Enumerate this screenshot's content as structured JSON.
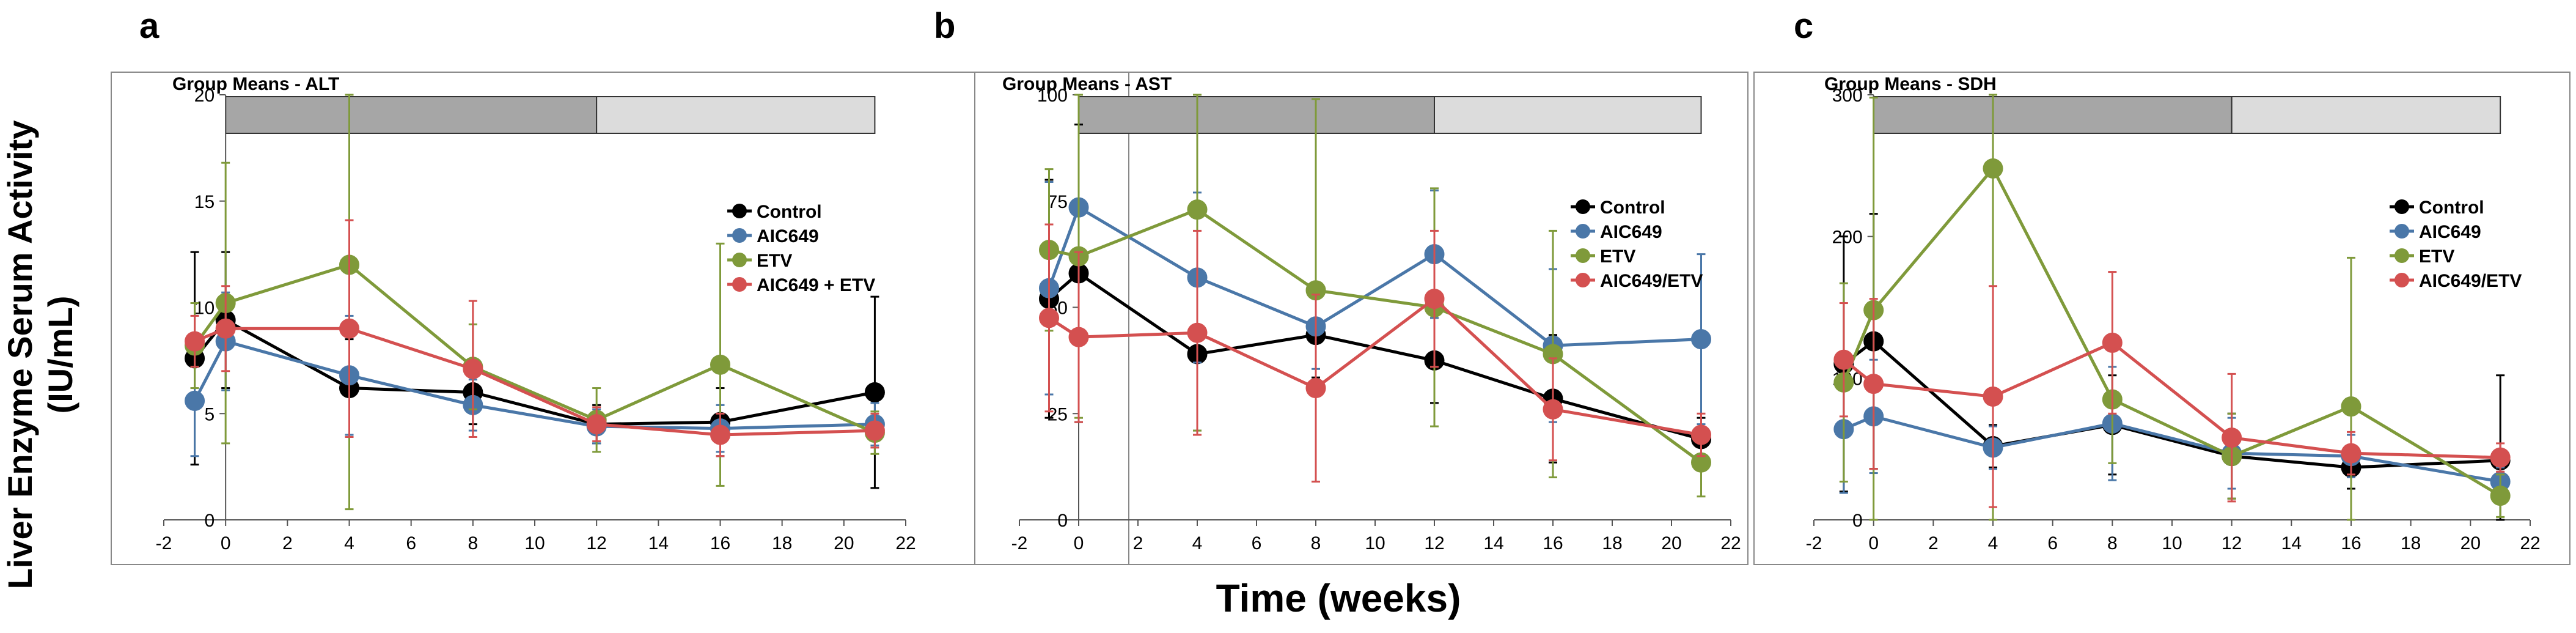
{
  "figure": {
    "y_axis_title_line1": "Liver Enzyme Serum Activity",
    "y_axis_title_line2": "(IU/mL)",
    "x_axis_title": "Time (weeks)"
  },
  "colors": {
    "Control": "#000000",
    "AIC649": "#4a77a8",
    "ETV": "#7f9a3a",
    "Combo": "#d45050",
    "bar_dark": "#a6a6a6",
    "bar_light": "#dcdcdc"
  },
  "chart_data": [
    {
      "type": "line",
      "panel_letter": "a",
      "title": "Group Means - ALT",
      "xlabel": "Time (weeks)",
      "ylabel": "Liver Enzyme Serum Activity (IU/mL)",
      "xlim": [
        -2,
        22
      ],
      "ylim": [
        0,
        20
      ],
      "xticks": [
        -2,
        0,
        2,
        4,
        6,
        8,
        10,
        12,
        14,
        16,
        18,
        20,
        22
      ],
      "yticks": [
        0,
        5,
        10,
        15,
        20
      ],
      "treatment_bars": [
        {
          "phase": "dark",
          "x_start": 0,
          "x_end": 12
        },
        {
          "phase": "light",
          "x_start": 12,
          "x_end": 21
        }
      ],
      "legend_position": "right",
      "series": [
        {
          "name": "Control",
          "color_key": "Control",
          "x": [
            -1,
            0,
            4,
            8,
            12,
            16,
            21
          ],
          "y": [
            7.6,
            9.4,
            6.2,
            6.0,
            4.5,
            4.6,
            6.0
          ],
          "err": [
            5.0,
            3.2,
            2.3,
            1.5,
            0.9,
            1.6,
            4.5
          ]
        },
        {
          "name": "AIC649",
          "color_key": "AIC649",
          "x": [
            -1,
            0,
            4,
            8,
            12,
            16,
            21
          ],
          "y": [
            5.6,
            8.4,
            6.8,
            5.4,
            4.4,
            4.3,
            4.5
          ],
          "err": [
            2.6,
            2.3,
            2.8,
            1.2,
            0.8,
            1.1,
            1.0
          ]
        },
        {
          "name": "ETV",
          "color_key": "ETV",
          "x": [
            -1,
            0,
            4,
            8,
            12,
            16,
            21
          ],
          "y": [
            8.2,
            10.2,
            12.0,
            7.2,
            4.7,
            7.3,
            4.1
          ],
          "err": [
            2.0,
            6.6,
            11.5,
            2.0,
            1.5,
            5.7,
            1.0
          ]
        },
        {
          "name": "AIC649 + ETV",
          "color_key": "Combo",
          "x": [
            -1,
            0,
            4,
            8,
            12,
            16,
            21
          ],
          "y": [
            8.4,
            9.0,
            9.0,
            7.1,
            4.5,
            4.0,
            4.2
          ],
          "err": [
            1.2,
            2.0,
            5.1,
            3.2,
            0.8,
            1.0,
            0.8
          ]
        }
      ]
    },
    {
      "type": "line",
      "panel_letter": "b",
      "title": "Group Means - AST",
      "xlabel": "Time (weeks)",
      "ylabel": "Liver Enzyme Serum Activity (IU/mL)",
      "xlim": [
        -2,
        22
      ],
      "ylim": [
        0,
        100
      ],
      "xticks": [
        -2,
        0,
        2,
        4,
        6,
        8,
        10,
        12,
        14,
        16,
        18,
        20,
        22
      ],
      "yticks": [
        0,
        25,
        50,
        75,
        100
      ],
      "treatment_bars": [
        {
          "phase": "dark",
          "x_start": 0,
          "x_end": 12
        },
        {
          "phase": "light",
          "x_start": 12,
          "x_end": 21
        }
      ],
      "legend_position": "right",
      "series": [
        {
          "name": "Control",
          "color_key": "Control",
          "x": [
            -1,
            0,
            4,
            8,
            12,
            16,
            21
          ],
          "y": [
            52,
            58,
            39,
            43.5,
            37.5,
            28.5,
            19
          ],
          "err": [
            28,
            35,
            18,
            10,
            10,
            15,
            5
          ]
        },
        {
          "name": "AIC649",
          "color_key": "AIC649",
          "x": [
            -1,
            0,
            4,
            8,
            12,
            16,
            21
          ],
          "y": [
            54.5,
            73.5,
            57,
            45.5,
            62.5,
            41,
            42.5
          ],
          "err": [
            25,
            30,
            20,
            10,
            15,
            18,
            20
          ]
        },
        {
          "name": "ETV",
          "color_key": "ETV",
          "x": [
            -1,
            0,
            4,
            8,
            12,
            16,
            21
          ],
          "y": [
            63.5,
            62,
            73,
            54,
            50,
            39,
            13.5
          ],
          "err": [
            19,
            38,
            52,
            45,
            28,
            29,
            8
          ]
        },
        {
          "name": "AIC649/ETV",
          "color_key": "Combo",
          "x": [
            -1,
            0,
            4,
            8,
            12,
            16,
            21
          ],
          "y": [
            47.5,
            43,
            44,
            31,
            52,
            26,
            20
          ],
          "err": [
            22,
            20,
            24,
            22,
            16,
            12,
            5
          ]
        }
      ]
    },
    {
      "type": "line",
      "panel_letter": "c",
      "title": "Group Means - SDH",
      "xlabel": "Time (weeks)",
      "ylabel": "Liver Enzyme Serum Activity (IU/mL)",
      "xlim": [
        -2,
        22
      ],
      "ylim": [
        0,
        300
      ],
      "xticks": [
        -2,
        0,
        2,
        4,
        6,
        8,
        10,
        12,
        14,
        16,
        18,
        20,
        22
      ],
      "yticks": [
        0,
        100,
        200,
        300
      ],
      "treatment_bars": [
        {
          "phase": "dark",
          "x_start": 0,
          "x_end": 12
        },
        {
          "phase": "light",
          "x_start": 12,
          "x_end": 21
        }
      ],
      "legend_position": "right",
      "series": [
        {
          "name": "Control",
          "color_key": "Control",
          "x": [
            -1,
            0,
            4,
            8,
            12,
            16,
            21
          ],
          "y": [
            110,
            126,
            52,
            67,
            45,
            37,
            42
          ],
          "err": [
            90,
            90,
            15,
            35,
            30,
            15,
            60
          ]
        },
        {
          "name": "AIC649",
          "color_key": "AIC649",
          "x": [
            -1,
            0,
            4,
            8,
            12,
            16,
            21
          ],
          "y": [
            64,
            73,
            51,
            68,
            47,
            45,
            27
          ],
          "err": [
            45,
            40,
            15,
            40,
            25,
            15,
            10
          ]
        },
        {
          "name": "ETV",
          "color_key": "ETV",
          "x": [
            -1,
            0,
            4,
            8,
            12,
            16,
            21
          ],
          "y": [
            97,
            148,
            248,
            85,
            45,
            80,
            17
          ],
          "err": [
            70,
            150,
            250,
            45,
            30,
            105,
            15
          ]
        },
        {
          "name": "AIC649/ETV",
          "color_key": "Combo",
          "x": [
            -1,
            0,
            4,
            8,
            12,
            16,
            21
          ],
          "y": [
            113,
            96,
            87,
            125,
            58,
            47,
            44
          ],
          "err": [
            40,
            60,
            78,
            50,
            45,
            15,
            10
          ]
        }
      ]
    }
  ]
}
